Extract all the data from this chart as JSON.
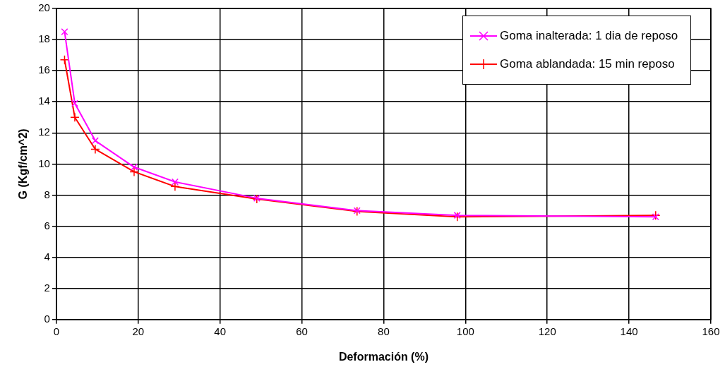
{
  "chart_data": {
    "type": "line",
    "xlabel": "Deformación (%)",
    "ylabel": "G (Kgf/cm^2)",
    "x": [
      2,
      4.5,
      9.5,
      19,
      29,
      49,
      73.5,
      98,
      146.5
    ],
    "series": [
      {
        "name": "Goma inalterada: 1 dia de reposo",
        "color": "#ff00ff",
        "marker": "x",
        "values": [
          18.5,
          13.9,
          11.5,
          9.8,
          8.85,
          7.8,
          7.0,
          6.7,
          6.6
        ]
      },
      {
        "name": "Goma ablandada: 15 min reposo",
        "color": "#ff0000",
        "marker": "cross",
        "values": [
          16.7,
          13.0,
          10.95,
          9.5,
          8.55,
          7.75,
          6.95,
          6.6,
          6.7
        ]
      }
    ],
    "xlim": [
      0,
      160
    ],
    "xticks": [
      0,
      20,
      40,
      60,
      80,
      100,
      120,
      140,
      160
    ],
    "ylim": [
      0,
      20
    ],
    "yticks": [
      0,
      2,
      4,
      6,
      8,
      10,
      12,
      14,
      16,
      18,
      20
    ],
    "grid": true,
    "legend": "top right",
    "line_style": "solid"
  }
}
